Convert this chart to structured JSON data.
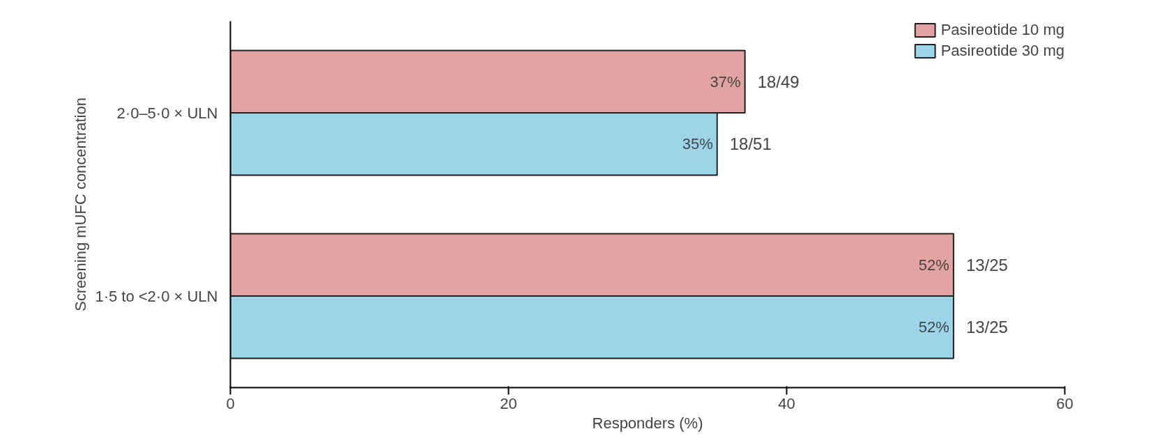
{
  "chart_data": {
    "type": "bar",
    "orientation": "horizontal",
    "xlabel": "Responders (%)",
    "ylabel": "Screening mUFC concentration",
    "categories": [
      "2·0–5·0 × ULN",
      "1·5 to <2·0 × ULN"
    ],
    "series": [
      {
        "name": "Pasireotide 10 mg",
        "color": "#e2a3a2",
        "values": [
          37,
          52
        ],
        "value_labels": [
          "37%",
          "52%"
        ]
      },
      {
        "name": "Pasireotide 30 mg",
        "color": "#9dd5e8",
        "values": [
          35,
          52
        ],
        "value_labels": [
          "35%",
          "52%"
        ]
      }
    ],
    "xlim": [
      0,
      60
    ],
    "xticks": [
      0,
      20,
      40,
      60
    ],
    "grid": false,
    "legend": "top right",
    "annotations": [
      {
        "text": "18/49",
        "x": 37,
        "y": "2·0–5·0 × ULN"
      },
      {
        "text": "18/51",
        "x": 35,
        "y": "2·0–5·0 × ULN"
      },
      {
        "text": "13/25",
        "x": 52,
        "y": "1·5 to <2·0 × ULN"
      },
      {
        "text": "13/25",
        "x": 52,
        "y": "1·5 to <2·0 × ULN"
      }
    ]
  }
}
